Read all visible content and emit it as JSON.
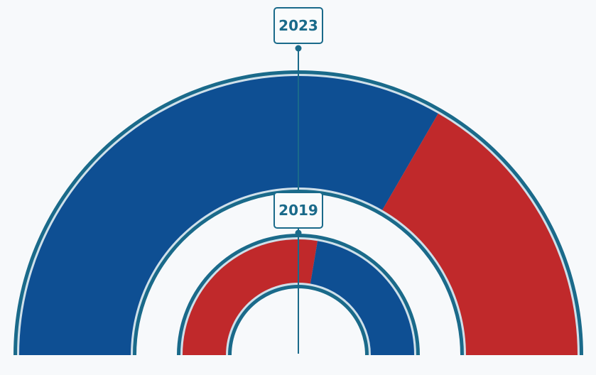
{
  "chart_data": {
    "type": "pie",
    "subtype": "nested semicircle donut (parliament-style)",
    "title": "",
    "rings": [
      {
        "label": "2023",
        "position": "outer",
        "slices": [
          {
            "name": "Blue",
            "color": "#0e4f93",
            "value": 66.7
          },
          {
            "name": "Red",
            "color": "#c0292b",
            "value": 33.3
          }
        ]
      },
      {
        "label": "2019",
        "position": "inner",
        "slices": [
          {
            "name": "Red",
            "color": "#c0292b",
            "value": 55.3
          },
          {
            "name": "Blue",
            "color": "#0e4f93",
            "value": 44.7
          }
        ]
      }
    ],
    "legend": "none",
    "units": "percent (estimated from angles)"
  },
  "labels": {
    "outer": "2023",
    "inner": "2019"
  },
  "colors": {
    "blue": "#0e4f93",
    "red": "#c0292b",
    "outline": "#1a6a8a",
    "highlight": "#cfe0ea",
    "background": "#f7f9fb"
  }
}
